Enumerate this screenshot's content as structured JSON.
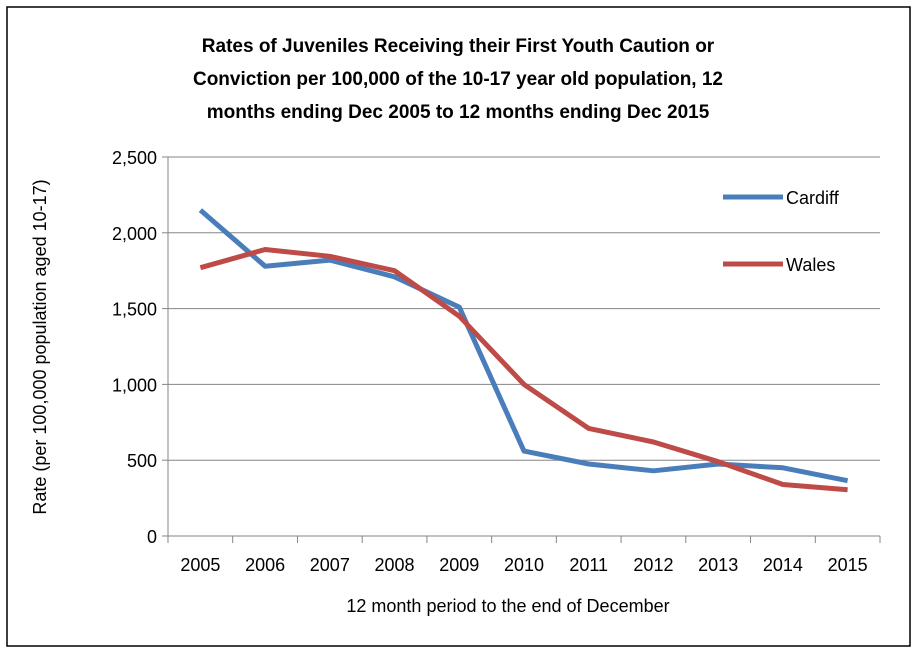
{
  "chart_data": {
    "type": "line",
    "title": [
      "Rates of Juveniles Receiving their First Youth Caution or",
      "Conviction per 100,000 of the 10-17 year old population, 12",
      "months ending Dec 2005 to 12 months ending Dec 2015"
    ],
    "xlabel": "12 month period to the end of December",
    "ylabel": "Rate (per 100,000 population aged 10-17)",
    "categories": [
      "2005",
      "2006",
      "2007",
      "2008",
      "2009",
      "2010",
      "2011",
      "2012",
      "2013",
      "2014",
      "2015"
    ],
    "ylim": [
      0,
      2500
    ],
    "yticks": [
      {
        "value": 0,
        "label": "0"
      },
      {
        "value": 500,
        "label": "500"
      },
      {
        "value": 1000,
        "label": "1,000"
      },
      {
        "value": 1500,
        "label": "1,500"
      },
      {
        "value": 2000,
        "label": "2,000"
      },
      {
        "value": 2500,
        "label": "2,500"
      }
    ],
    "grid": true,
    "legend_position": "top-right",
    "series": [
      {
        "name": "Cardiff",
        "color": "#4a7ebb",
        "values": [
          2150,
          1780,
          1820,
          1710,
          1510,
          560,
          475,
          430,
          475,
          450,
          365
        ]
      },
      {
        "name": "Wales",
        "color": "#be4b48",
        "values": [
          1770,
          1890,
          1845,
          1750,
          1450,
          1000,
          710,
          620,
          490,
          340,
          305
        ]
      }
    ]
  }
}
